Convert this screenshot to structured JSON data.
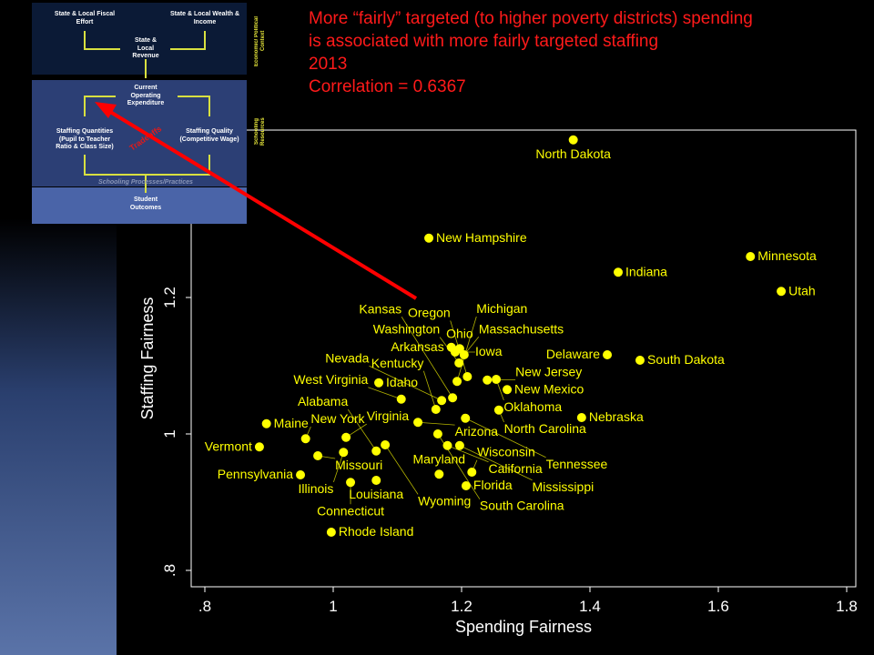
{
  "slide": {
    "title_lines": [
      "More “fairly” targeted (to higher poverty districts) spending",
      "is associated with more fairly targeted staffing",
      "2013",
      "Correlation =  0.6367"
    ],
    "colors": {
      "title": "#ff1a1a",
      "points": "#ffff00",
      "arrow": "#ff0000",
      "background": "#000000"
    }
  },
  "diagram": {
    "fiscal_effort": "State & Local Fiscal Effort",
    "wealth_income": "State & Local Wealth & Income",
    "revenue": "State & Local Revenue",
    "expenditure": "Current Operating Expenditure",
    "staff_quantities": "Staffing Quantities (Pupil to Teacher Ratio & Class Size)",
    "staff_quality": "Staffing Quality (Competitive Wage)",
    "tradeoffs": "Tradeoffs",
    "processes": "Schooling Processes/Practices",
    "outcomes": "Student Outcomes",
    "side_context": "Economic/ Political Context",
    "side_resources": "Schooling Resources"
  },
  "chart_data": {
    "type": "scatter",
    "xlabel": "Spending Fairness",
    "ylabel": "Staffing Fairness",
    "xlim": [
      0.78,
      1.83
    ],
    "ylim": [
      0.79,
      1.46
    ],
    "xticks": [
      ".8",
      "1",
      "1.2",
      "1.4",
      "1.6",
      "1.8"
    ],
    "xtick_values": [
      0.8,
      1,
      1.2,
      1.4,
      1.6,
      1.8
    ],
    "yticks": [
      ".8",
      "1",
      "1.2"
    ],
    "ytick_values": [
      0.8,
      1,
      1.2
    ],
    "grid": false,
    "points": [
      {
        "label": "North Dakota",
        "x": 1.374,
        "y": 1.431
      },
      {
        "label": "New Hampshire",
        "x": 1.149,
        "y": 1.287
      },
      {
        "label": "Minnesota",
        "x": 1.65,
        "y": 1.26
      },
      {
        "label": "Indiana",
        "x": 1.444,
        "y": 1.237
      },
      {
        "label": "Utah",
        "x": 1.698,
        "y": 1.209
      },
      {
        "label": "Delaware",
        "x": 1.427,
        "y": 1.116
      },
      {
        "label": "South Dakota",
        "x": 1.478,
        "y": 1.108
      },
      {
        "label": "Arkansas",
        "x": 1.184,
        "y": 1.127
      },
      {
        "label": "Ohio",
        "x": 1.197,
        "y": 1.125
      },
      {
        "label": "Iowa",
        "x": 1.19,
        "y": 1.12
      },
      {
        "label": "Massachusetts",
        "x": 1.204,
        "y": 1.116
      },
      {
        "label": "Washington",
        "x": 1.196,
        "y": 1.104
      },
      {
        "label": "Idaho",
        "x": 1.071,
        "y": 1.075
      },
      {
        "label": "Oregon",
        "x": 1.209,
        "y": 1.084
      },
      {
        "label": "Michigan",
        "x": 1.193,
        "y": 1.077
      },
      {
        "label": "New Jersey",
        "x": 1.24,
        "y": 1.079
      },
      {
        "label": "Oklahoma",
        "x": 1.254,
        "y": 1.08
      },
      {
        "label": "New Mexico",
        "x": 1.271,
        "y": 1.065
      },
      {
        "label": "West Virginia",
        "x": 1.106,
        "y": 1.051
      },
      {
        "label": "Kansas",
        "x": 1.186,
        "y": 1.053
      },
      {
        "label": "Nevada",
        "x": 1.169,
        "y": 1.049
      },
      {
        "label": "Kentucky",
        "x": 1.16,
        "y": 1.036
      },
      {
        "label": "North Carolina",
        "x": 1.258,
        "y": 1.035
      },
      {
        "label": "Tennessee",
        "x": 1.206,
        "y": 1.023
      },
      {
        "label": "Nebraska",
        "x": 1.387,
        "y": 1.024
      },
      {
        "label": "Arizona",
        "x": 1.132,
        "y": 1.017
      },
      {
        "label": "Maine",
        "x": 0.896,
        "y": 1.015
      },
      {
        "label": "South Carolina",
        "x": 1.163,
        "y": 1.0
      },
      {
        "label": "Virginia",
        "x": 1.02,
        "y": 0.995
      },
      {
        "label": "New York",
        "x": 0.957,
        "y": 0.993
      },
      {
        "label": "Vermont",
        "x": 0.885,
        "y": 0.981
      },
      {
        "label": "Wyoming",
        "x": 1.081,
        "y": 0.984
      },
      {
        "label": "California",
        "x": 1.178,
        "y": 0.983
      },
      {
        "label": "Mississippi",
        "x": 1.197,
        "y": 0.983
      },
      {
        "label": "Illinois",
        "x": 1.016,
        "y": 0.973
      },
      {
        "label": "Alabama",
        "x": 1.067,
        "y": 0.975
      },
      {
        "label": "Missouri",
        "x": 0.976,
        "y": 0.968
      },
      {
        "label": "Pennsylvania",
        "x": 0.949,
        "y": 0.94
      },
      {
        "label": "Connecticut",
        "x": 1.027,
        "y": 0.929
      },
      {
        "label": "Louisiana",
        "x": 1.067,
        "y": 0.932
      },
      {
        "label": "Maryland",
        "x": 1.165,
        "y": 0.941
      },
      {
        "label": "Wisconsin",
        "x": 1.216,
        "y": 0.944
      },
      {
        "label": "Florida",
        "x": 1.207,
        "y": 0.924
      },
      {
        "label": "Rhode Island",
        "x": 0.997,
        "y": 0.856
      }
    ]
  }
}
